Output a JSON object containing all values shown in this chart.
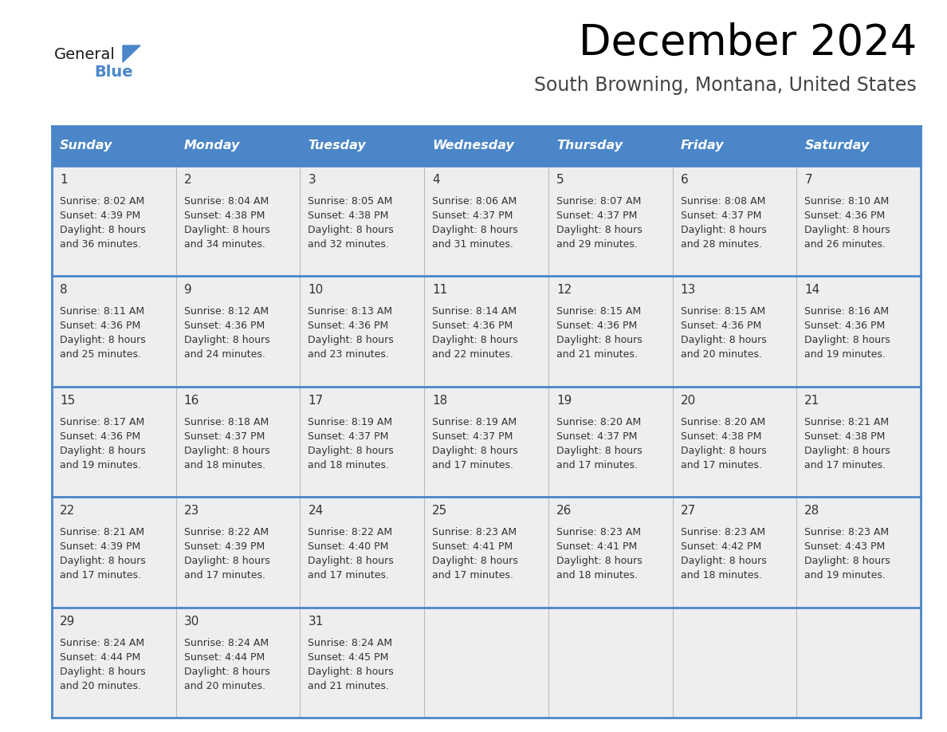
{
  "title": "December 2024",
  "subtitle": "South Browning, Montana, United States",
  "header_color": "#4a86c8",
  "header_text_color": "#ffffff",
  "cell_bg_color": "#eeeeee",
  "border_color": "#4a86c8",
  "text_color": "#333333",
  "day_names": [
    "Sunday",
    "Monday",
    "Tuesday",
    "Wednesday",
    "Thursday",
    "Friday",
    "Saturday"
  ],
  "days_data": [
    {
      "day": 1,
      "col": 0,
      "row": 0,
      "sunrise": "8:02 AM",
      "sunset": "4:39 PM",
      "daylight_min": "36"
    },
    {
      "day": 2,
      "col": 1,
      "row": 0,
      "sunrise": "8:04 AM",
      "sunset": "4:38 PM",
      "daylight_min": "34"
    },
    {
      "day": 3,
      "col": 2,
      "row": 0,
      "sunrise": "8:05 AM",
      "sunset": "4:38 PM",
      "daylight_min": "32"
    },
    {
      "day": 4,
      "col": 3,
      "row": 0,
      "sunrise": "8:06 AM",
      "sunset": "4:37 PM",
      "daylight_min": "31"
    },
    {
      "day": 5,
      "col": 4,
      "row": 0,
      "sunrise": "8:07 AM",
      "sunset": "4:37 PM",
      "daylight_min": "29"
    },
    {
      "day": 6,
      "col": 5,
      "row": 0,
      "sunrise": "8:08 AM",
      "sunset": "4:37 PM",
      "daylight_min": "28"
    },
    {
      "day": 7,
      "col": 6,
      "row": 0,
      "sunrise": "8:10 AM",
      "sunset": "4:36 PM",
      "daylight_min": "26"
    },
    {
      "day": 8,
      "col": 0,
      "row": 1,
      "sunrise": "8:11 AM",
      "sunset": "4:36 PM",
      "daylight_min": "25"
    },
    {
      "day": 9,
      "col": 1,
      "row": 1,
      "sunrise": "8:12 AM",
      "sunset": "4:36 PM",
      "daylight_min": "24"
    },
    {
      "day": 10,
      "col": 2,
      "row": 1,
      "sunrise": "8:13 AM",
      "sunset": "4:36 PM",
      "daylight_min": "23"
    },
    {
      "day": 11,
      "col": 3,
      "row": 1,
      "sunrise": "8:14 AM",
      "sunset": "4:36 PM",
      "daylight_min": "22"
    },
    {
      "day": 12,
      "col": 4,
      "row": 1,
      "sunrise": "8:15 AM",
      "sunset": "4:36 PM",
      "daylight_min": "21"
    },
    {
      "day": 13,
      "col": 5,
      "row": 1,
      "sunrise": "8:15 AM",
      "sunset": "4:36 PM",
      "daylight_min": "20"
    },
    {
      "day": 14,
      "col": 6,
      "row": 1,
      "sunrise": "8:16 AM",
      "sunset": "4:36 PM",
      "daylight_min": "19"
    },
    {
      "day": 15,
      "col": 0,
      "row": 2,
      "sunrise": "8:17 AM",
      "sunset": "4:36 PM",
      "daylight_min": "19"
    },
    {
      "day": 16,
      "col": 1,
      "row": 2,
      "sunrise": "8:18 AM",
      "sunset": "4:37 PM",
      "daylight_min": "18"
    },
    {
      "day": 17,
      "col": 2,
      "row": 2,
      "sunrise": "8:19 AM",
      "sunset": "4:37 PM",
      "daylight_min": "18"
    },
    {
      "day": 18,
      "col": 3,
      "row": 2,
      "sunrise": "8:19 AM",
      "sunset": "4:37 PM",
      "daylight_min": "17"
    },
    {
      "day": 19,
      "col": 4,
      "row": 2,
      "sunrise": "8:20 AM",
      "sunset": "4:37 PM",
      "daylight_min": "17"
    },
    {
      "day": 20,
      "col": 5,
      "row": 2,
      "sunrise": "8:20 AM",
      "sunset": "4:38 PM",
      "daylight_min": "17"
    },
    {
      "day": 21,
      "col": 6,
      "row": 2,
      "sunrise": "8:21 AM",
      "sunset": "4:38 PM",
      "daylight_min": "17"
    },
    {
      "day": 22,
      "col": 0,
      "row": 3,
      "sunrise": "8:21 AM",
      "sunset": "4:39 PM",
      "daylight_min": "17"
    },
    {
      "day": 23,
      "col": 1,
      "row": 3,
      "sunrise": "8:22 AM",
      "sunset": "4:39 PM",
      "daylight_min": "17"
    },
    {
      "day": 24,
      "col": 2,
      "row": 3,
      "sunrise": "8:22 AM",
      "sunset": "4:40 PM",
      "daylight_min": "17"
    },
    {
      "day": 25,
      "col": 3,
      "row": 3,
      "sunrise": "8:23 AM",
      "sunset": "4:41 PM",
      "daylight_min": "17"
    },
    {
      "day": 26,
      "col": 4,
      "row": 3,
      "sunrise": "8:23 AM",
      "sunset": "4:41 PM",
      "daylight_min": "18"
    },
    {
      "day": 27,
      "col": 5,
      "row": 3,
      "sunrise": "8:23 AM",
      "sunset": "4:42 PM",
      "daylight_min": "18"
    },
    {
      "day": 28,
      "col": 6,
      "row": 3,
      "sunrise": "8:23 AM",
      "sunset": "4:43 PM",
      "daylight_min": "19"
    },
    {
      "day": 29,
      "col": 0,
      "row": 4,
      "sunrise": "8:24 AM",
      "sunset": "4:44 PM",
      "daylight_min": "20"
    },
    {
      "day": 30,
      "col": 1,
      "row": 4,
      "sunrise": "8:24 AM",
      "sunset": "4:44 PM",
      "daylight_min": "20"
    },
    {
      "day": 31,
      "col": 2,
      "row": 4,
      "sunrise": "8:24 AM",
      "sunset": "4:45 PM",
      "daylight_min": "21"
    }
  ],
  "num_rows": 5
}
